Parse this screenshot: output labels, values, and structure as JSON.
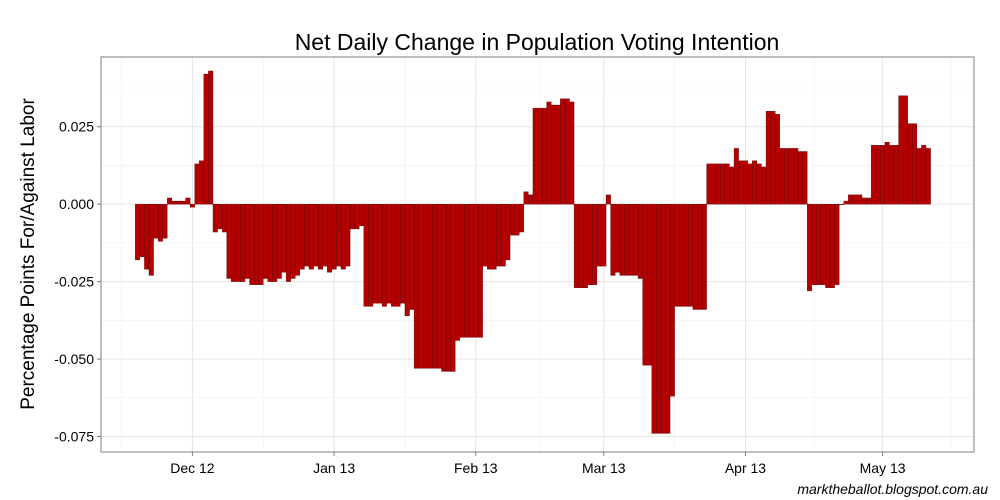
{
  "chart_data": {
    "type": "bar",
    "title": "Net Daily Change in Population Voting Intention",
    "xlabel": "",
    "ylabel": "Percentage Points For/Against Labor",
    "ylim": [
      -0.08,
      0.0475
    ],
    "yticks": [
      -0.075,
      -0.05,
      -0.025,
      0.0,
      0.025
    ],
    "ytick_labels": [
      "-0.075",
      "-0.050",
      "-0.025",
      "0.000",
      "0.025"
    ],
    "xticks": [
      {
        "day": 20,
        "label": "Dec 12"
      },
      {
        "day": 51,
        "label": "Jan 13"
      },
      {
        "day": 82,
        "label": "Feb 13"
      },
      {
        "day": 110,
        "label": "Mar 13"
      },
      {
        "day": 141,
        "label": "Apr 13"
      },
      {
        "day": 171,
        "label": "May 13"
      }
    ],
    "x_range": [
      0,
      191
    ],
    "x_first_day": 8,
    "bar_color": "#b30000",
    "values": [
      -0.018,
      -0.017,
      -0.021,
      -0.023,
      -0.011,
      -0.012,
      -0.011,
      0.002,
      0.001,
      0.001,
      0.001,
      0.002,
      -0.001,
      0.013,
      0.014,
      0.042,
      0.043,
      -0.009,
      -0.008,
      -0.009,
      -0.024,
      -0.025,
      -0.025,
      -0.025,
      -0.024,
      -0.026,
      -0.026,
      -0.026,
      -0.024,
      -0.025,
      -0.025,
      -0.024,
      -0.022,
      -0.025,
      -0.024,
      -0.023,
      -0.021,
      -0.02,
      -0.021,
      -0.02,
      -0.021,
      -0.02,
      -0.022,
      -0.021,
      -0.02,
      -0.021,
      -0.02,
      -0.008,
      -0.008,
      -0.007,
      -0.033,
      -0.033,
      -0.032,
      -0.032,
      -0.033,
      -0.032,
      -0.033,
      -0.033,
      -0.032,
      -0.036,
      -0.034,
      -0.053,
      -0.053,
      -0.053,
      -0.053,
      -0.053,
      -0.053,
      -0.054,
      -0.054,
      -0.054,
      -0.044,
      -0.043,
      -0.043,
      -0.043,
      -0.043,
      -0.043,
      -0.02,
      -0.021,
      -0.021,
      -0.02,
      -0.02,
      -0.018,
      -0.01,
      -0.01,
      -0.009,
      0.004,
      0.003,
      0.031,
      0.031,
      0.031,
      0.033,
      0.032,
      0.032,
      0.034,
      0.034,
      0.033,
      -0.027,
      -0.027,
      -0.027,
      -0.026,
      -0.026,
      -0.02,
      -0.02,
      0.003,
      -0.023,
      -0.022,
      -0.023,
      -0.023,
      -0.023,
      -0.023,
      -0.024,
      -0.052,
      -0.052,
      -0.074,
      -0.074,
      -0.074,
      -0.074,
      -0.062,
      -0.033,
      -0.033,
      -0.033,
      -0.033,
      -0.034,
      -0.034,
      -0.034,
      0.013,
      0.013,
      0.013,
      0.013,
      0.013,
      0.012,
      0.018,
      0.014,
      0.014,
      0.013,
      0.014,
      0.013,
      0.012,
      0.03,
      0.03,
      0.029,
      0.018,
      0.018,
      0.018,
      0.018,
      0.017,
      0.017,
      -0.028,
      -0.026,
      -0.026,
      -0.026,
      -0.027,
      -0.027,
      -0.026,
      0.0,
      0.001,
      0.003,
      0.003,
      0.003,
      0.002,
      0.002,
      0.019,
      0.019,
      0.019,
      0.02,
      0.019,
      0.019,
      0.035,
      0.035,
      0.026,
      0.026,
      0.018,
      0.019,
      0.018
    ]
  },
  "caption": "marktheballot.blogspot.com.au"
}
